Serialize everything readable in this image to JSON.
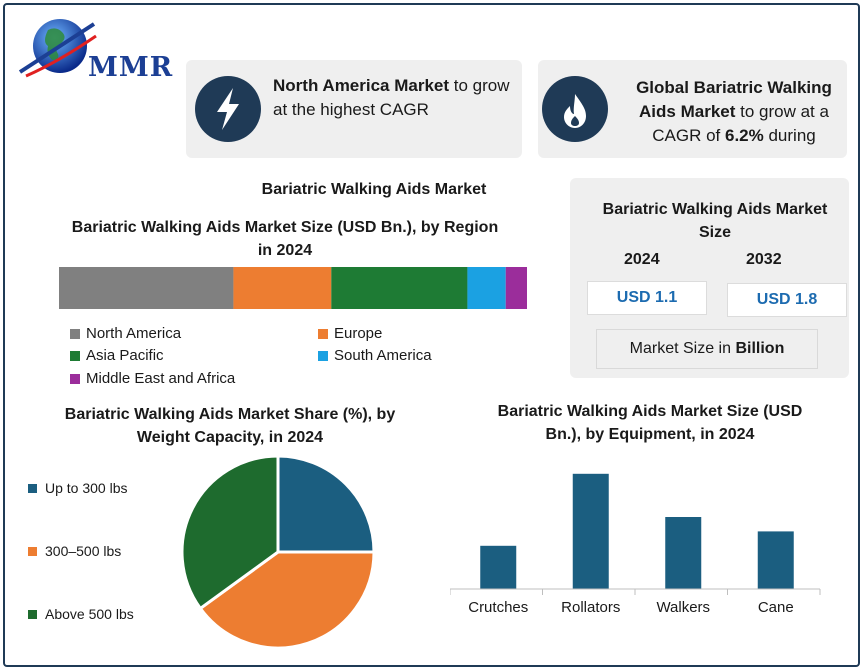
{
  "logo": {
    "text": "MMR"
  },
  "card_north": {
    "bold": "North America Market",
    "rest": " to grow at the highest CAGR",
    "icon": "lightning-icon"
  },
  "card_global": {
    "bold1": "Global Bariatric Walking Aids Market",
    "mid": " to grow at a CAGR of ",
    "bold2": "6.2%",
    "rest": " during",
    "icon": "flame-icon"
  },
  "main_title": "Bariatric Walking Aids Market",
  "region": {
    "title": "Bariatric Walking Aids Market Size (USD Bn.), by Region in 2024",
    "legend": [
      "North America",
      "Europe",
      "Asia Pacific",
      "South America",
      "Middle East and Africa"
    ]
  },
  "size_panel": {
    "title": "Bariatric Walking Aids Market Size",
    "year1": "2024",
    "year2": "2032",
    "value1": "USD 1.1",
    "value2": "USD 1.8",
    "unit_prefix": "Market Size in ",
    "unit_bold": "Billion"
  },
  "weight": {
    "title": "Bariatric Walking Aids Market Share (%), by Weight Capacity, in 2024",
    "legend": [
      "Up to 300 lbs",
      "300–500 lbs",
      "Above 500 lbs"
    ]
  },
  "equipment": {
    "title": "Bariatric Walking Aids Market Size (USD Bn.), by Equipment, in 2024"
  },
  "chart_data": [
    {
      "type": "bar",
      "orientation": "stacked-horizontal",
      "title": "Bariatric Walking Aids Market Size (USD Bn.), by Region in 2024",
      "series": [
        {
          "name": "North America",
          "values": [
            0.41
          ],
          "color": "#808080"
        },
        {
          "name": "Europe",
          "values": [
            0.23
          ],
          "color": "#ed7d31"
        },
        {
          "name": "Asia Pacific",
          "values": [
            0.32
          ],
          "color": "#1e7b34"
        },
        {
          "name": "South America",
          "values": [
            0.09
          ],
          "color": "#1ba1e2"
        },
        {
          "name": "Middle East and Africa",
          "values": [
            0.05
          ],
          "color": "#9b2d9b"
        }
      ]
    },
    {
      "type": "pie",
      "title": "Bariatric Walking Aids Market Share (%), by Weight Capacity, in 2024",
      "categories": [
        "Up to 300 lbs",
        "300–500 lbs",
        "Above 500 lbs"
      ],
      "values": [
        25,
        40,
        35
      ],
      "colors": [
        "#1b5e80",
        "#ed7d31",
        "#1e6b2e"
      ]
    },
    {
      "type": "bar",
      "title": "Bariatric Walking Aids Market Size (USD Bn.), by Equipment, in 2024",
      "categories": [
        "Crutches",
        "Rollators",
        "Walkers",
        "Cane"
      ],
      "values": [
        0.18,
        0.48,
        0.3,
        0.24
      ],
      "ylim": [
        0,
        0.5
      ],
      "color": "#1b5e80"
    }
  ]
}
